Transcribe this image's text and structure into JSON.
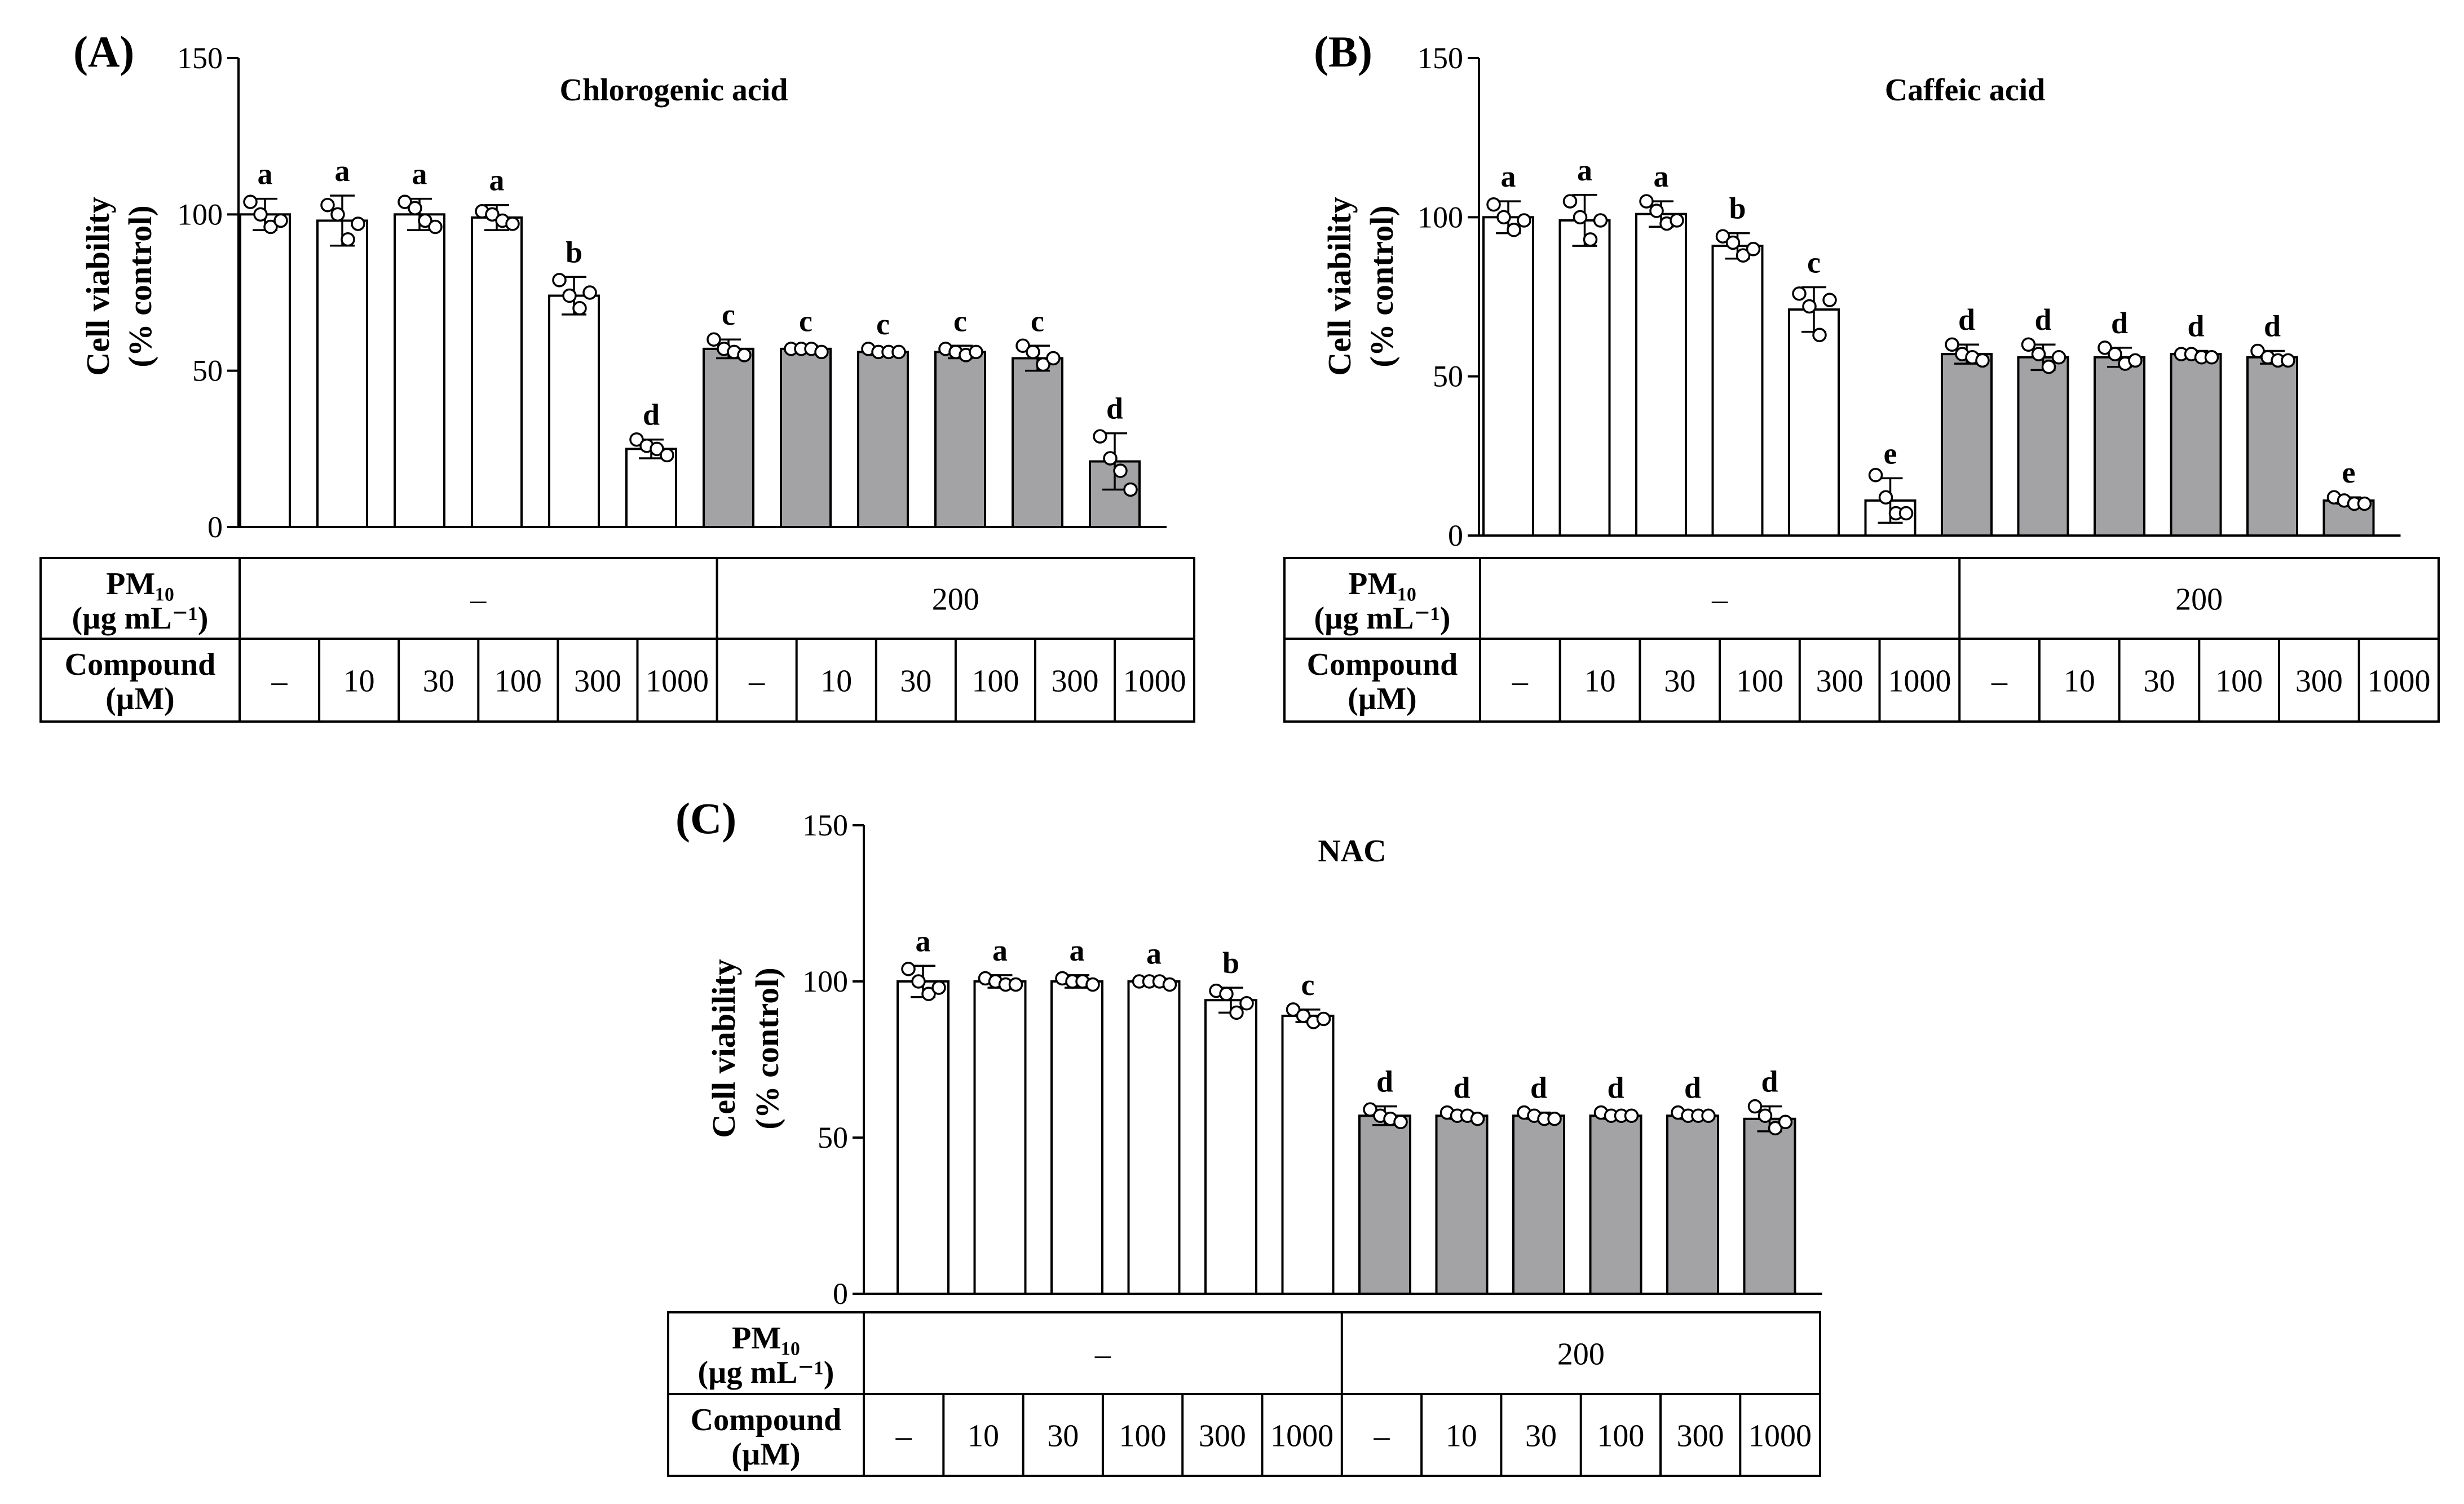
{
  "colors": {
    "control_bar": "#ffffff",
    "pm_bar": "#a3a3a6",
    "stroke": "#000000"
  },
  "table": {
    "pm_label": "PM₁₀",
    "pm_unit": "(µg mL⁻¹)",
    "compound_label": "Compound",
    "compound_unit": "(µM)",
    "pm_values": [
      "–",
      "200"
    ],
    "compound_values": [
      "–",
      "10",
      "30",
      "100",
      "300",
      "1000",
      "–",
      "10",
      "30",
      "100",
      "300",
      "1000"
    ]
  },
  "chart_data": [
    {
      "type": "bar",
      "panel": "(A)",
      "title": "Chlorogenic acid",
      "ylabel_line1": "Cell viability",
      "ylabel_line2": "(% control)",
      "ylim": [
        0,
        150
      ],
      "yticks": [
        0,
        50,
        100,
        150
      ],
      "categories": [
        "–",
        "10",
        "30",
        "100",
        "300",
        "1000",
        "–",
        "10",
        "30",
        "100",
        "300",
        "1000"
      ],
      "groups": [
        "control",
        "control",
        "control",
        "control",
        "control",
        "control",
        "pm",
        "pm",
        "pm",
        "pm",
        "pm",
        "pm"
      ],
      "values": [
        100,
        98,
        100,
        99,
        74,
        25,
        57,
        57,
        56,
        56,
        54,
        21
      ],
      "errors": [
        5,
        8,
        5,
        4,
        6,
        3,
        3,
        1,
        1,
        2,
        4,
        9
      ],
      "letters": [
        "a",
        "a",
        "a",
        "a",
        "b",
        "d",
        "c",
        "c",
        "c",
        "c",
        "c",
        "d"
      ],
      "points": [
        [
          104,
          100,
          96,
          98
        ],
        [
          103,
          100,
          92,
          97
        ],
        [
          104,
          102,
          98,
          96
        ],
        [
          101,
          100,
          98,
          97
        ],
        [
          79,
          74,
          70,
          75
        ],
        [
          28,
          26,
          25,
          23
        ],
        [
          60,
          57,
          56,
          55
        ],
        [
          57,
          57,
          57,
          56
        ],
        [
          57,
          56,
          56,
          56
        ],
        [
          57,
          56,
          55,
          56
        ],
        [
          58,
          56,
          52,
          54
        ],
        [
          29,
          22,
          18,
          12
        ]
      ]
    },
    {
      "type": "bar",
      "panel": "(B)",
      "title": "Caffeic acid",
      "ylabel_line1": "Cell viability",
      "ylabel_line2": "(% control)",
      "ylim": [
        0,
        150
      ],
      "yticks": [
        0,
        50,
        100,
        150
      ],
      "categories": [
        "–",
        "10",
        "30",
        "100",
        "300",
        "1000",
        "–",
        "10",
        "30",
        "100",
        "300",
        "1000"
      ],
      "groups": [
        "control",
        "control",
        "control",
        "control",
        "control",
        "control",
        "pm",
        "pm",
        "pm",
        "pm",
        "pm",
        "pm"
      ],
      "values": [
        100,
        99,
        101,
        91,
        71,
        11,
        57,
        56,
        56,
        57,
        56,
        11
      ],
      "errors": [
        5,
        8,
        4,
        4,
        7,
        7,
        3,
        4,
        3,
        1,
        2,
        1
      ],
      "letters": [
        "a",
        "a",
        "a",
        "b",
        "c",
        "e",
        "d",
        "d",
        "d",
        "d",
        "d",
        "e"
      ],
      "points": [
        [
          104,
          100,
          96,
          99
        ],
        [
          105,
          100,
          93,
          99
        ],
        [
          105,
          102,
          98,
          99
        ],
        [
          94,
          92,
          88,
          90
        ],
        [
          76,
          72,
          63,
          74
        ],
        [
          19,
          12,
          7,
          7
        ],
        [
          60,
          57,
          56,
          55
        ],
        [
          60,
          57,
          53,
          56
        ],
        [
          59,
          57,
          54,
          55
        ],
        [
          57,
          57,
          56,
          56
        ],
        [
          58,
          56,
          55,
          55
        ],
        [
          12,
          11,
          10,
          10
        ]
      ]
    },
    {
      "type": "bar",
      "panel": "(C)",
      "title": "NAC",
      "ylabel_line1": "Cell viability",
      "ylabel_line2": "(% control)",
      "ylim": [
        0,
        150
      ],
      "yticks": [
        0,
        50,
        100,
        150
      ],
      "categories": [
        "–",
        "10",
        "30",
        "100",
        "300",
        "1000",
        "–",
        "10",
        "30",
        "100",
        "300",
        "1000"
      ],
      "groups": [
        "control",
        "control",
        "control",
        "control",
        "control",
        "control",
        "pm",
        "pm",
        "pm",
        "pm",
        "pm",
        "pm"
      ],
      "values": [
        100,
        100,
        100,
        100,
        94,
        89,
        57,
        57,
        57,
        57,
        57,
        56
      ],
      "errors": [
        5,
        2,
        2,
        1,
        4,
        2,
        3,
        1,
        1,
        1,
        1,
        4
      ],
      "letters": [
        "a",
        "a",
        "a",
        "a",
        "b",
        "c",
        "d",
        "d",
        "d",
        "d",
        "d",
        "d"
      ],
      "points": [
        [
          104,
          100,
          96,
          98
        ],
        [
          101,
          100,
          99,
          99
        ],
        [
          101,
          100,
          100,
          99
        ],
        [
          100,
          100,
          100,
          99
        ],
        [
          97,
          96,
          90,
          93
        ],
        [
          91,
          89,
          87,
          88
        ],
        [
          59,
          57,
          56,
          55
        ],
        [
          58,
          57,
          57,
          56
        ],
        [
          58,
          57,
          56,
          56
        ],
        [
          58,
          57,
          57,
          57
        ],
        [
          58,
          57,
          57,
          57
        ],
        [
          60,
          57,
          53,
          55
        ]
      ]
    }
  ]
}
